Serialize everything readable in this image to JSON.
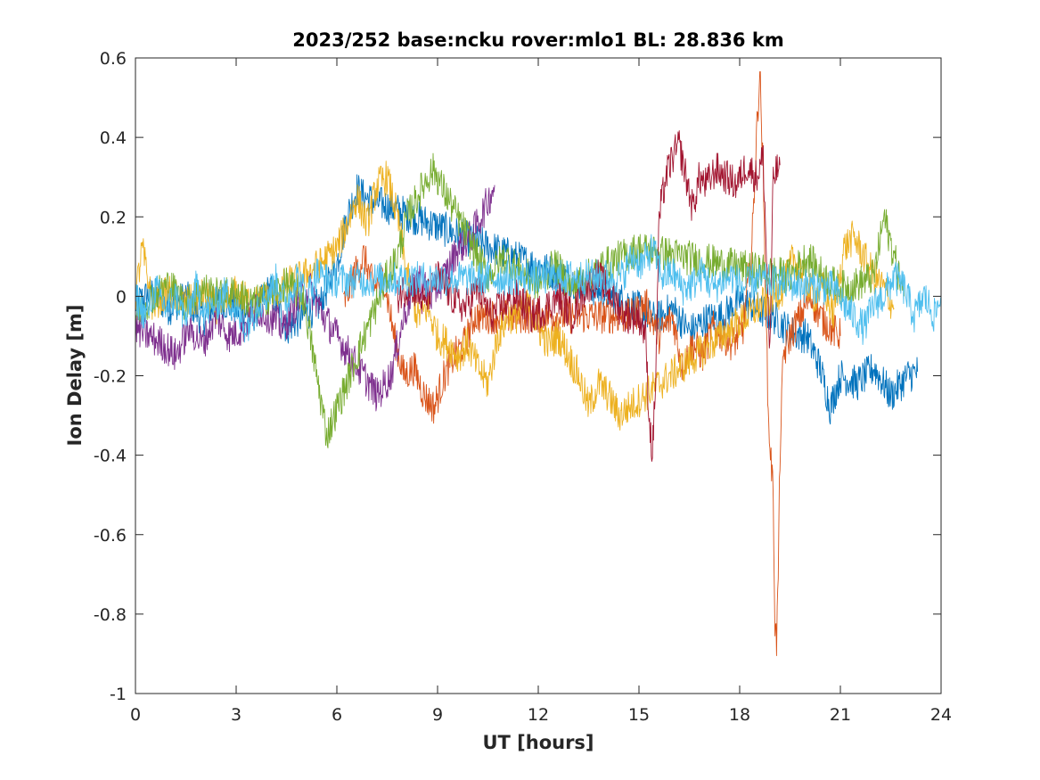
{
  "chart_data": {
    "type": "line",
    "title": "2023/252 base:ncku rover:mlo1 BL: 28.836 km",
    "xlabel": "UT [hours]",
    "ylabel": "Ion Delay [m]",
    "xlim": [
      0,
      24
    ],
    "ylim": [
      -1,
      0.6
    ],
    "xticks": [
      0,
      3,
      6,
      9,
      12,
      15,
      18,
      21,
      24
    ],
    "yticks": [
      -1,
      -0.8,
      -0.6,
      -0.4,
      -0.2,
      0,
      0.2,
      0.4,
      0.6
    ],
    "xtick_labels": [
      "0",
      "3",
      "6",
      "9",
      "12",
      "15",
      "18",
      "21",
      "24"
    ],
    "ytick_labels": [
      "-1",
      "-0.8",
      "-0.6",
      "-0.4",
      "-0.2",
      "0",
      "0.2",
      "0.4",
      "0.6"
    ],
    "grid": false,
    "legend": "none",
    "series": [
      {
        "color": "#0072bd",
        "x": [
          0,
          0.5,
          1,
          1.5,
          2,
          2.5,
          3,
          3.5,
          4,
          4.5,
          5,
          5.5,
          6,
          6.3,
          6.6,
          6.8,
          14.8,
          15.5,
          16,
          16.5,
          17,
          17.5,
          18,
          18.5,
          19,
          19.5,
          20,
          20.4,
          20.7,
          21,
          21.5,
          22,
          22.5,
          23,
          23.3
        ],
        "y": [
          -0.02,
          0.01,
          -0.03,
          0.0,
          -0.06,
          -0.01,
          -0.03,
          -0.05,
          0.02,
          -0.08,
          -0.05,
          -0.02,
          0.08,
          0.2,
          0.27,
          0.25,
          -0.02,
          -0.06,
          -0.03,
          -0.09,
          -0.06,
          -0.05,
          -0.01,
          -0.03,
          -0.05,
          -0.09,
          -0.1,
          -0.18,
          -0.28,
          -0.2,
          -0.22,
          -0.18,
          -0.25,
          -0.2,
          -0.19
        ]
      },
      {
        "color": "#d95319",
        "x": [
          6.2,
          6.5,
          6.8,
          7.1,
          7.4,
          7.7,
          8,
          8.3,
          8.6,
          8.9,
          9.2,
          9.5,
          9.8,
          10.1,
          14.8,
          15.2,
          15.6,
          16,
          16.3,
          16.6,
          16.9,
          17.2,
          17.5,
          17.8,
          18.1,
          18.35,
          18.5,
          18.6,
          18.7,
          18.75,
          18.85,
          19,
          19.05,
          19.1,
          19.15,
          19.2,
          19.3,
          19.5,
          19.8,
          20.1,
          20.4,
          20.7,
          21
        ],
        "y": [
          -0.02,
          0.05,
          0.1,
          0.02,
          0.05,
          -0.1,
          -0.2,
          -0.18,
          -0.25,
          -0.28,
          -0.2,
          -0.15,
          -0.12,
          -0.05,
          -0.05,
          -0.02,
          -0.1,
          -0.05,
          -0.18,
          -0.12,
          -0.15,
          -0.08,
          -0.1,
          -0.12,
          -0.08,
          0.1,
          0.4,
          0.57,
          0.3,
          0.1,
          -0.3,
          -0.5,
          -0.82,
          -0.87,
          -0.7,
          -0.4,
          -0.15,
          -0.1,
          -0.05,
          0.0,
          -0.05,
          -0.08,
          -0.1
        ]
      },
      {
        "color": "#edb120",
        "x": [
          0,
          0.2,
          0.5,
          1,
          1.5,
          2,
          2.5,
          3,
          3.5,
          4,
          4.5,
          5,
          5.5,
          6,
          6.3,
          6.6,
          6.9,
          7.2,
          7.5,
          7.8,
          8.1,
          8.4,
          8.7,
          9,
          9.3,
          9.6,
          9.9,
          10.2,
          10.5,
          10.8,
          11.1,
          11.4,
          11.7,
          12,
          12.3,
          12.6,
          12.9,
          13.2,
          13.5,
          13.8,
          14.1,
          14.4,
          14.7,
          19.3,
          19.6,
          19.9,
          20.2,
          20.5,
          20.8,
          21.1,
          21.4,
          21.7,
          22,
          22.3,
          22.6
        ],
        "y": [
          0.0,
          0.12,
          -0.02,
          0.01,
          -0.02,
          0.0,
          -0.03,
          0.01,
          -0.02,
          0.0,
          0.03,
          0.05,
          0.08,
          0.12,
          0.18,
          0.25,
          0.18,
          0.28,
          0.3,
          0.2,
          0.05,
          -0.05,
          -0.03,
          -0.1,
          -0.12,
          -0.15,
          -0.12,
          -0.18,
          -0.22,
          -0.1,
          -0.05,
          -0.05,
          -0.02,
          -0.08,
          -0.12,
          -0.1,
          -0.15,
          -0.2,
          -0.28,
          -0.22,
          -0.25,
          -0.3,
          -0.28,
          0.02,
          0.1,
          0.05,
          0.0,
          0.02,
          -0.05,
          0.12,
          0.15,
          0.1,
          0.05,
          0.02,
          -0.03
        ]
      },
      {
        "color": "#7e2f8e",
        "x": [
          0,
          0.4,
          0.8,
          1.2,
          1.6,
          2,
          2.4,
          2.8,
          3.2,
          3.6,
          4,
          4.4,
          4.8,
          5.2,
          5.6,
          6,
          6.4,
          6.8,
          7.2,
          7.6,
          8,
          8.4,
          8.8,
          9.2,
          9.6,
          10,
          10.4,
          10.7
        ],
        "y": [
          -0.08,
          -0.1,
          -0.12,
          -0.15,
          -0.08,
          -0.12,
          -0.05,
          -0.1,
          -0.08,
          -0.03,
          -0.05,
          -0.08,
          -0.02,
          0.02,
          -0.05,
          -0.1,
          -0.15,
          -0.2,
          -0.25,
          -0.2,
          -0.05,
          0.05,
          0.0,
          0.05,
          0.12,
          0.15,
          0.22,
          0.28
        ]
      },
      {
        "color": "#77ac30",
        "x": [
          0,
          0.5,
          1,
          1.5,
          2,
          2.5,
          3,
          3.5,
          4,
          4.5,
          5,
          5.2,
          5.4,
          5.6,
          5.7,
          7.5,
          7.8,
          8.1,
          8.4,
          8.7,
          8.9,
          9.1,
          10.5,
          11,
          11.5,
          12,
          12.5,
          13,
          13.5,
          14,
          14.5,
          15,
          19.5,
          20,
          20.5,
          21,
          21.5,
          22,
          22.3,
          22.6,
          22.9
        ],
        "y": [
          -0.05,
          0.0,
          0.03,
          -0.02,
          0.02,
          0.0,
          0.01,
          -0.02,
          0.0,
          0.03,
          0.0,
          -0.1,
          -0.2,
          -0.3,
          -0.35,
          0.05,
          0.1,
          0.2,
          0.25,
          0.3,
          0.32,
          0.28,
          0.05,
          0.1,
          0.06,
          0.03,
          0.08,
          0.02,
          0.05,
          0.08,
          0.1,
          0.12,
          0.05,
          0.1,
          0.05,
          0.02,
          0.03,
          0.05,
          0.2,
          0.1,
          0.0
        ]
      },
      {
        "color": "#a2142f",
        "x": [
          7.8,
          8.2,
          8.6,
          9,
          9.4,
          9.8,
          10.2,
          10.6,
          11,
          11.4,
          11.8,
          12.2,
          12.6,
          13,
          13.4,
          13.8,
          14.2,
          14.6,
          15,
          15.2,
          15.3,
          15.4,
          15.5,
          15.6,
          15.8,
          16,
          16.2,
          16.4,
          16.6,
          16.8,
          17,
          17.3,
          17.6,
          17.9,
          18.2,
          18.5,
          18.7,
          18.8,
          18.9,
          19.0,
          19.2
        ],
        "y": [
          0.0,
          0.03,
          -0.02,
          0.05,
          0.0,
          -0.03,
          0.02,
          -0.05,
          -0.02,
          0.0,
          -0.05,
          -0.03,
          0.0,
          -0.05,
          0.02,
          0.05,
          0.0,
          -0.05,
          -0.05,
          -0.1,
          -0.3,
          -0.4,
          -0.2,
          0.2,
          0.3,
          0.35,
          0.38,
          0.3,
          0.22,
          0.3,
          0.28,
          0.32,
          0.3,
          0.28,
          0.33,
          0.3,
          0.35,
          0.1,
          -0.15,
          0.3,
          0.33
        ]
      },
      {
        "color": "#4dbeee",
        "x": [
          0,
          0.3,
          0.6,
          0.9,
          1.2,
          1.5,
          1.8,
          2.1,
          2.4,
          2.7,
          3,
          3.3,
          3.6,
          3.9,
          4.2,
          4.5,
          4.8,
          5.1,
          5.4,
          5.7,
          14.5,
          14.8,
          15.1,
          15.4,
          15.7,
          16,
          16.3,
          16.6,
          16.9,
          17.2,
          17.5,
          17.8,
          18.1,
          18.4,
          20.8,
          21.1,
          21.4,
          21.7,
          22,
          22.3,
          22.6,
          22.9,
          23.2,
          23.5,
          23.8,
          24
        ],
        "y": [
          0.0,
          -0.05,
          0.02,
          -0.03,
          0.0,
          -0.06,
          0.02,
          -0.04,
          -0.02,
          0.01,
          -0.04,
          -0.08,
          -0.02,
          0.0,
          0.04,
          -0.02,
          0.05,
          0.0,
          0.06,
          0.04,
          0.05,
          0.1,
          0.08,
          0.12,
          0.05,
          0.06,
          0.02,
          0.03,
          0.06,
          0.02,
          0.04,
          0.05,
          0.02,
          0.04,
          0.02,
          -0.02,
          -0.05,
          -0.08,
          -0.02,
          0.0,
          0.05,
          0.02,
          -0.05,
          0.0,
          -0.05,
          0.0
        ]
      }
    ]
  }
}
